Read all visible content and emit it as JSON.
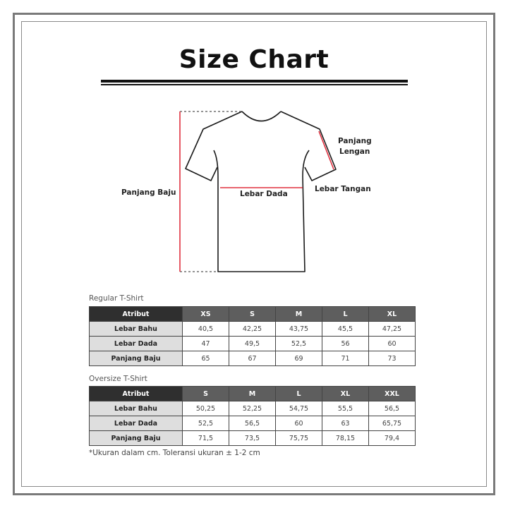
{
  "title": "Size Chart",
  "diagram": {
    "labels": {
      "panjang_baju": "Panjang Baju",
      "lebar_dada": "Lebar Dada",
      "lebar_tangan": "Lebar Tangan",
      "panjang_lengan_1": "Panjang",
      "panjang_lengan_2": "Lengan"
    },
    "measure_color": "#e0303f"
  },
  "regular": {
    "caption": "Regular T-Shirt",
    "headers": [
      "Atribut",
      "XS",
      "S",
      "M",
      "L",
      "XL"
    ],
    "rows": [
      {
        "label": "Lebar Bahu",
        "values": [
          "40,5",
          "42,25",
          "43,75",
          "45,5",
          "47,25"
        ]
      },
      {
        "label": "Lebar Dada",
        "values": [
          "47",
          "49,5",
          "52,5",
          "56",
          "60"
        ]
      },
      {
        "label": "Panjang Baju",
        "values": [
          "65",
          "67",
          "69",
          "71",
          "73"
        ]
      }
    ]
  },
  "oversize": {
    "caption": "Oversize T-Shirt",
    "headers": [
      "Atribut",
      "S",
      "M",
      "L",
      "XL",
      "XXL"
    ],
    "rows": [
      {
        "label": "Lebar Bahu",
        "values": [
          "50,25",
          "52,25",
          "54,75",
          "55,5",
          "56,5"
        ]
      },
      {
        "label": "Lebar Dada",
        "values": [
          "52,5",
          "56,5",
          "60",
          "63",
          "65,75"
        ]
      },
      {
        "label": "Panjang Baju",
        "values": [
          "71,5",
          "73,5",
          "75,75",
          "78,15",
          "79,4"
        ]
      }
    ]
  },
  "note": "*Ukuran dalam cm. Toleransi ukuran ± 1-2 cm"
}
